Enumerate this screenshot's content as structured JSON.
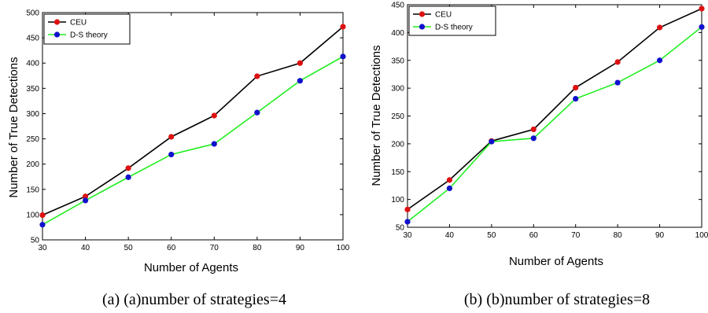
{
  "chart_data": [
    {
      "type": "line",
      "x": [
        30,
        40,
        50,
        60,
        70,
        80,
        90,
        100
      ],
      "xlabel": "Number of Agents",
      "ylabel": "Number of True Detections",
      "xlim": [
        30,
        100
      ],
      "ylim": [
        50,
        500
      ],
      "xticks": [
        30,
        40,
        50,
        60,
        70,
        80,
        90,
        100
      ],
      "yticks": [
        50,
        100,
        150,
        200,
        250,
        300,
        350,
        400,
        450,
        500
      ],
      "legend": "top-left",
      "grid": false,
      "caption": "(a) (a)number of strategies=4",
      "series": [
        {
          "name": "CEU",
          "line_color": "#000000",
          "marker_color": "#dd1111",
          "values": [
            99,
            136,
            192,
            254,
            296,
            374,
            400,
            472
          ]
        },
        {
          "name": "D-S theory",
          "line_color": "#22ee22",
          "marker_color": "#1111cc",
          "values": [
            80,
            128,
            174,
            219,
            240,
            302,
            365,
            413
          ]
        }
      ]
    },
    {
      "type": "line",
      "x": [
        30,
        40,
        50,
        60,
        70,
        80,
        90,
        100
      ],
      "xlabel": "Number of Agents",
      "ylabel": "Number of True Detections",
      "xlim": [
        30,
        100
      ],
      "ylim": [
        50,
        450
      ],
      "xticks": [
        30,
        40,
        50,
        60,
        70,
        80,
        90,
        100
      ],
      "yticks": [
        50,
        100,
        150,
        200,
        250,
        300,
        350,
        400,
        450
      ],
      "legend": "top-left",
      "grid": false,
      "caption": "(b) (b)number of strategies=8",
      "series": [
        {
          "name": "CEU",
          "line_color": "#000000",
          "marker_color": "#dd1111",
          "values": [
            82,
            135,
            205,
            226,
            301,
            347,
            409,
            443
          ]
        },
        {
          "name": "D-S theory",
          "line_color": "#22ee22",
          "marker_color": "#1111cc",
          "values": [
            60,
            120,
            204,
            210,
            281,
            310,
            350,
            410
          ]
        }
      ]
    }
  ]
}
